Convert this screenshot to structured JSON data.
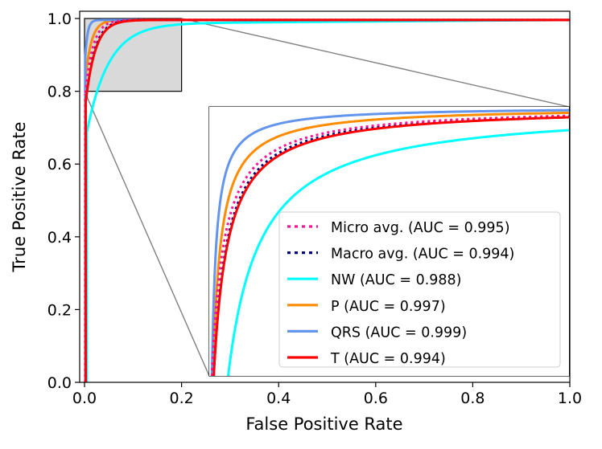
{
  "chart_data": {
    "type": "line",
    "title": "",
    "xlabel": "False Positive Rate",
    "ylabel": "True Positive Rate",
    "xlim": [
      -0.01,
      1.0
    ],
    "ylim": [
      0.0,
      1.02
    ],
    "xticks": [
      {
        "value": 0.0,
        "label": "0.0"
      },
      {
        "value": 0.2,
        "label": "0.2"
      },
      {
        "value": 0.4,
        "label": "0.4"
      },
      {
        "value": 0.6,
        "label": "0.6"
      },
      {
        "value": 0.8,
        "label": "0.8"
      },
      {
        "value": 1.0,
        "label": "1.0"
      }
    ],
    "yticks": [
      {
        "value": 0.0,
        "label": "0.0"
      },
      {
        "value": 0.2,
        "label": "0.2"
      },
      {
        "value": 0.4,
        "label": "0.4"
      },
      {
        "value": 0.6,
        "label": "0.6"
      },
      {
        "value": 0.8,
        "label": "0.8"
      },
      {
        "value": 1.0,
        "label": "1.0"
      }
    ],
    "zoom_region": {
      "x": [
        0.0,
        0.2
      ],
      "y": [
        0.8,
        1.0
      ]
    },
    "legend_location": "inset lower-right",
    "series": [
      {
        "name": "Micro avg.",
        "label": "Micro avg. (AUC = 0.995)",
        "auc": 0.995,
        "color": "#ff1493",
        "style": "dotted"
      },
      {
        "name": "Macro avg.",
        "label": "Macro avg. (AUC = 0.994)",
        "auc": 0.994,
        "color": "#000080",
        "style": "dotted"
      },
      {
        "name": "NW",
        "label": "NW (AUC = 0.988)",
        "auc": 0.988,
        "color": "#00ffff",
        "style": "solid"
      },
      {
        "name": "P",
        "label": "P (AUC = 0.997)",
        "auc": 0.997,
        "color": "#ff8c00",
        "style": "solid"
      },
      {
        "name": "QRS",
        "label": "QRS (AUC = 0.999)",
        "auc": 0.999,
        "color": "#6495ed",
        "style": "solid"
      },
      {
        "name": "T",
        "label": "T (AUC = 0.994)",
        "auc": 0.994,
        "color": "#ff0000",
        "style": "solid"
      }
    ]
  }
}
